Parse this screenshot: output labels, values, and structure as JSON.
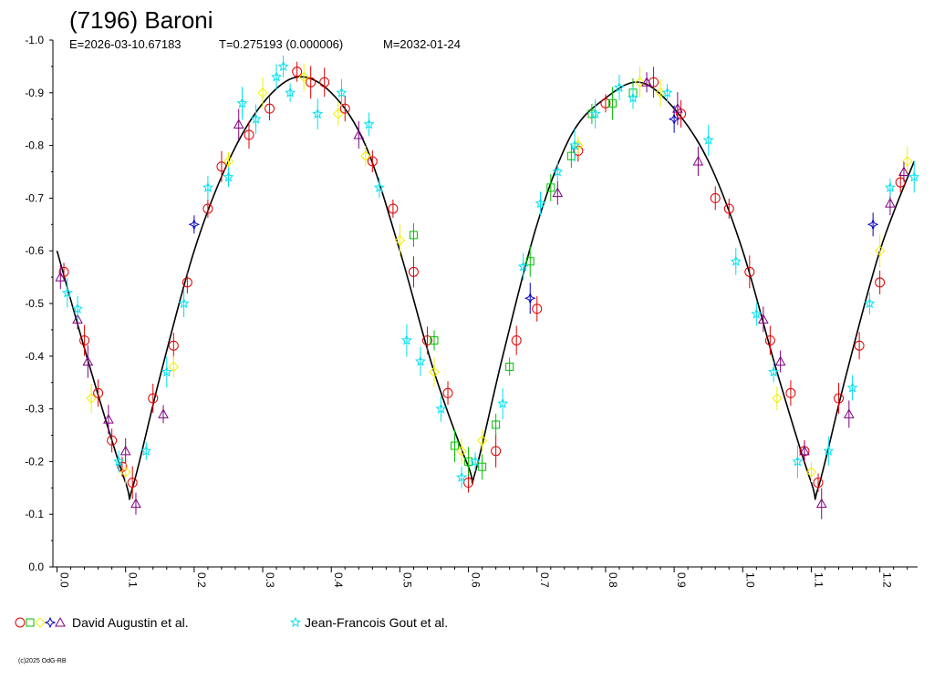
{
  "chart_data": {
    "type": "scatter",
    "title": "(7196) Baroni",
    "subtitle": {
      "epoch": "E=2026-03-10.67183",
      "period": "T=0.275193 (0.000006)",
      "mid": "M=2032-01-24"
    },
    "xlabel": "",
    "ylabel": "",
    "xlim": [
      -0.006,
      1.255
    ],
    "ylim": [
      0.0,
      -1.0
    ],
    "y_reversed": true,
    "grid": false,
    "x_ticks": [
      "0.0",
      "0.1",
      "0.2",
      "0.3",
      "0.4",
      "0.5",
      "0.6",
      "0.7",
      "0.8",
      "0.9",
      "1.0",
      "1.1",
      "1.2"
    ],
    "y_ticks": [
      "-1.0",
      "-0.9",
      "-0.8",
      "-0.7",
      "-0.6",
      "-0.5",
      "-0.4",
      "-0.3",
      "-0.2",
      "-0.1",
      "0.0"
    ],
    "fit_curve": {
      "x": [
        0.0,
        0.05,
        0.1,
        0.11,
        0.15,
        0.2,
        0.25,
        0.3,
        0.35,
        0.4,
        0.45,
        0.5,
        0.55,
        0.6,
        0.61,
        0.65,
        0.7,
        0.75,
        0.8,
        0.85,
        0.9,
        0.95,
        1.0,
        1.05,
        1.1,
        1.11,
        1.15,
        1.2,
        1.25
      ],
      "y": [
        -0.6,
        -0.37,
        -0.16,
        -0.15,
        -0.36,
        -0.6,
        -0.77,
        -0.88,
        -0.93,
        -0.9,
        -0.8,
        -0.6,
        -0.37,
        -0.19,
        -0.18,
        -0.4,
        -0.65,
        -0.82,
        -0.89,
        -0.92,
        -0.87,
        -0.77,
        -0.6,
        -0.37,
        -0.16,
        -0.15,
        -0.36,
        -0.6,
        -0.77
      ]
    },
    "series": [
      {
        "name": "David Augustin et al.",
        "marker": "circle",
        "color": "#e00000",
        "x": [
          0.01,
          0.04,
          0.06,
          0.08,
          0.095,
          0.11,
          0.14,
          0.17,
          0.19,
          0.22,
          0.24,
          0.28,
          0.31,
          0.35,
          0.37,
          0.39,
          0.42,
          0.46,
          0.49,
          0.52,
          0.54,
          0.57,
          0.6,
          0.64,
          0.67,
          0.7,
          0.76,
          0.8,
          0.87,
          0.91,
          0.96,
          0.98,
          1.01,
          1.04,
          1.07,
          1.09,
          1.11,
          1.14,
          1.17,
          1.2,
          1.23
        ],
        "y": [
          -0.56,
          -0.43,
          -0.33,
          -0.24,
          -0.19,
          -0.16,
          -0.32,
          -0.42,
          -0.54,
          -0.68,
          -0.76,
          -0.82,
          -0.87,
          -0.94,
          -0.92,
          -0.92,
          -0.87,
          -0.77,
          -0.68,
          -0.56,
          -0.43,
          -0.33,
          -0.16,
          -0.22,
          -0.43,
          -0.49,
          -0.79,
          -0.88,
          -0.92,
          -0.86,
          -0.7,
          -0.68,
          -0.56,
          -0.43,
          -0.33,
          -0.22,
          -0.16,
          -0.32,
          -0.42,
          -0.54,
          -0.73
        ]
      },
      {
        "name": "David Augustin et al.",
        "marker": "square",
        "color": "#00c000",
        "x": [
          0.52,
          0.55,
          0.58,
          0.6,
          0.62,
          0.64,
          0.66,
          0.69,
          0.72,
          0.75,
          0.78,
          0.81,
          0.84
        ],
        "y": [
          -0.63,
          -0.43,
          -0.23,
          -0.2,
          -0.19,
          -0.27,
          -0.38,
          -0.58,
          -0.72,
          -0.78,
          -0.86,
          -0.88,
          -0.9
        ]
      },
      {
        "name": "David Augustin et al.",
        "marker": "diamond",
        "color": "#f0f000",
        "x": [
          0.05,
          0.1,
          0.17,
          0.25,
          0.3,
          0.36,
          0.41,
          0.45,
          0.5,
          0.55,
          0.59,
          0.62,
          0.76,
          0.85,
          0.88,
          1.05,
          1.1,
          1.2,
          1.24
        ],
        "y": [
          -0.32,
          -0.18,
          -0.38,
          -0.77,
          -0.9,
          -0.93,
          -0.86,
          -0.78,
          -0.62,
          -0.37,
          -0.22,
          -0.24,
          -0.8,
          -0.92,
          -0.9,
          -0.32,
          -0.18,
          -0.6,
          -0.77
        ]
      },
      {
        "name": "David Augustin et al.",
        "marker": "star4",
        "color": "#0000c0",
        "x": [
          0.2,
          0.69,
          0.9,
          1.19
        ],
        "y": [
          -0.65,
          -0.51,
          -0.85,
          -0.65
        ]
      },
      {
        "name": "David Augustin et al.",
        "marker": "triangle",
        "color": "#800080",
        "x": [
          0.005,
          0.03,
          0.045,
          0.075,
          0.1,
          0.115,
          0.155,
          0.265,
          0.44,
          0.73,
          0.86,
          0.905,
          0.935,
          1.03,
          1.055,
          1.09,
          1.115,
          1.155,
          1.215,
          1.235
        ],
        "y": [
          -0.55,
          -0.47,
          -0.39,
          -0.28,
          -0.22,
          -0.12,
          -0.29,
          -0.84,
          -0.82,
          -0.71,
          -0.92,
          -0.87,
          -0.77,
          -0.47,
          -0.39,
          -0.22,
          -0.12,
          -0.29,
          -0.69,
          -0.75
        ]
      },
      {
        "name": "Jean-Francois Gout et al.",
        "marker": "star5",
        "color": "#00e0f0",
        "x": [
          0.015,
          0.03,
          0.09,
          0.13,
          0.16,
          0.185,
          0.22,
          0.25,
          0.27,
          0.29,
          0.32,
          0.33,
          0.34,
          0.38,
          0.415,
          0.455,
          0.47,
          0.51,
          0.53,
          0.56,
          0.59,
          0.61,
          0.65,
          0.68,
          0.705,
          0.73,
          0.755,
          0.785,
          0.82,
          0.84,
          0.89,
          0.95,
          0.99,
          1.02,
          1.045,
          1.08,
          1.125,
          1.16,
          1.185,
          1.215,
          1.25
        ],
        "y": [
          -0.52,
          -0.49,
          -0.2,
          -0.22,
          -0.37,
          -0.5,
          -0.72,
          -0.74,
          -0.88,
          -0.85,
          -0.93,
          -0.95,
          -0.9,
          -0.86,
          -0.9,
          -0.84,
          -0.72,
          -0.43,
          -0.39,
          -0.3,
          -0.17,
          -0.2,
          -0.31,
          -0.57,
          -0.69,
          -0.75,
          -0.8,
          -0.86,
          -0.91,
          -0.89,
          -0.9,
          -0.81,
          -0.58,
          -0.48,
          -0.37,
          -0.2,
          -0.22,
          -0.34,
          -0.5,
          -0.72,
          -0.74
        ]
      }
    ],
    "legend": {
      "placement": "bottom",
      "entries": [
        {
          "label": "David Augustin et al.",
          "markers": [
            "circle",
            "square",
            "diamond",
            "star4",
            "triangle"
          ],
          "colors": [
            "#e00000",
            "#00c000",
            "#f0f000",
            "#0000c0",
            "#800080"
          ]
        },
        {
          "label": "Jean-Francois Gout et al.",
          "markers": [
            "star5"
          ],
          "colors": [
            "#00e0f0"
          ]
        }
      ]
    },
    "copyright": "(c)2025 OdG-RB"
  }
}
